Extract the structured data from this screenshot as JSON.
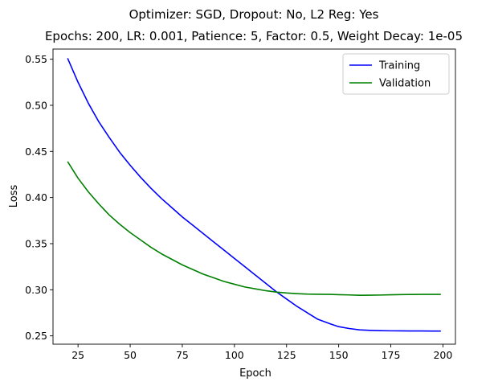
{
  "chart_data": {
    "type": "line",
    "title": "Optimizer: SGD, Dropout: No, L2 Reg: Yes",
    "subtitle": "Epochs: 200, LR: 0.001, Patience: 5, Factor: 0.5, Weight Decay: 1e-05",
    "xlabel": "Epoch",
    "ylabel": "Loss",
    "xlim": [
      13,
      206
    ],
    "ylim": [
      0.241,
      0.561
    ],
    "xticks": [
      25,
      50,
      75,
      100,
      125,
      150,
      175,
      200
    ],
    "yticks": [
      0.25,
      0.3,
      0.35,
      0.4,
      0.45,
      0.5,
      0.55
    ],
    "ytick_labels": [
      "0.25",
      "0.30",
      "0.35",
      "0.40",
      "0.45",
      "0.50",
      "0.55"
    ],
    "grid": false,
    "legend_position": "top-right",
    "series": [
      {
        "name": "Training",
        "color": "#0000ff",
        "x": [
          20,
          25,
          30,
          35,
          40,
          45,
          50,
          55,
          60,
          65,
          70,
          75,
          80,
          85,
          90,
          95,
          100,
          105,
          110,
          115,
          120,
          125,
          130,
          135,
          140,
          146,
          150,
          155,
          160,
          165,
          170,
          175,
          180,
          185,
          190,
          195,
          199
        ],
        "y": [
          0.551,
          0.525,
          0.502,
          0.482,
          0.465,
          0.449,
          0.435,
          0.422,
          0.41,
          0.399,
          0.389,
          0.379,
          0.37,
          0.361,
          0.352,
          0.343,
          0.334,
          0.325,
          0.316,
          0.307,
          0.298,
          0.29,
          0.282,
          0.275,
          0.268,
          0.263,
          0.26,
          0.258,
          0.2565,
          0.256,
          0.2557,
          0.2555,
          0.2554,
          0.2553,
          0.2553,
          0.2552,
          0.2552
        ]
      },
      {
        "name": "Validation",
        "color": "#008000",
        "x": [
          20,
          25,
          30,
          35,
          40,
          45,
          50,
          55,
          60,
          65,
          70,
          75,
          80,
          85,
          90,
          95,
          100,
          105,
          110,
          115,
          120,
          125,
          130,
          135,
          140,
          146,
          150,
          155,
          160,
          165,
          170,
          175,
          180,
          185,
          190,
          195,
          199
        ],
        "y": [
          0.439,
          0.421,
          0.406,
          0.393,
          0.381,
          0.371,
          0.362,
          0.354,
          0.346,
          0.339,
          0.333,
          0.327,
          0.322,
          0.317,
          0.313,
          0.309,
          0.306,
          0.303,
          0.301,
          0.299,
          0.2975,
          0.2965,
          0.2958,
          0.2953,
          0.2951,
          0.295,
          0.2947,
          0.2944,
          0.294,
          0.2941,
          0.2943,
          0.2946,
          0.2948,
          0.2949,
          0.295,
          0.295,
          0.295
        ]
      }
    ]
  }
}
